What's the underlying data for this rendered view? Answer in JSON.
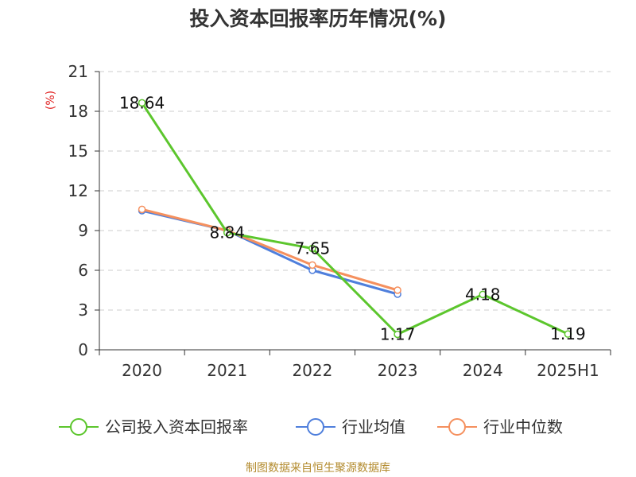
{
  "title": "投入资本回报率历年情况(%)",
  "source": "制图数据来自恒生聚源数据库",
  "chart_data": {
    "type": "line",
    "title": "投入资本回报率历年情况(%)",
    "ylabel": "(%)",
    "xlabel": "",
    "ylim": [
      0,
      21
    ],
    "yticks": [
      0,
      3,
      6,
      9,
      12,
      15,
      18,
      21
    ],
    "grid": true,
    "legend_position": "bottom",
    "categories": [
      "2020",
      "2021",
      "2022",
      "2023",
      "2024",
      "2025H1"
    ],
    "series": [
      {
        "name": "公司投入资本回报率",
        "color": "#5cc62d",
        "values": [
          18.64,
          8.84,
          7.65,
          1.17,
          4.18,
          1.19
        ],
        "labels": [
          "18.64",
          "8.84",
          "7.65",
          "1.17",
          "4.18",
          "1.19"
        ]
      },
      {
        "name": "行业均值",
        "color": "#4f7fdc",
        "values": [
          10.5,
          9.0,
          6.0,
          4.2,
          null,
          null
        ]
      },
      {
        "name": "行业中位数",
        "color": "#f5905e",
        "values": [
          10.6,
          9.0,
          6.4,
          4.5,
          null,
          null
        ]
      }
    ]
  }
}
